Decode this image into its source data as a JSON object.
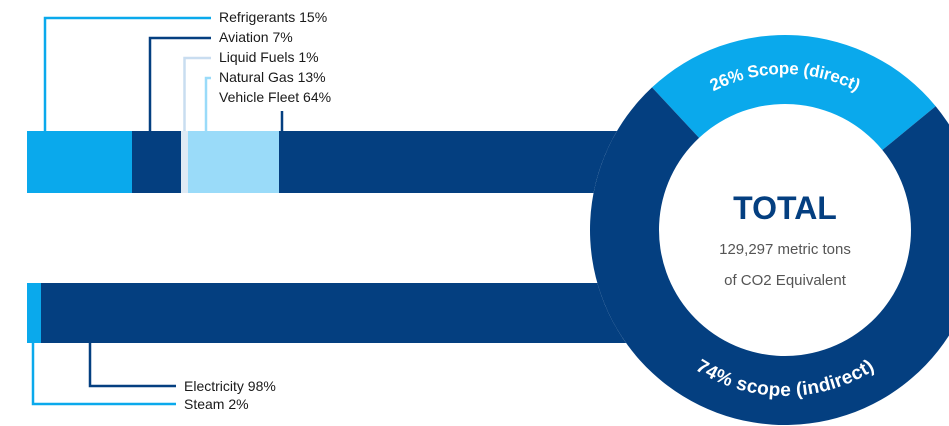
{
  "colors": {
    "navy": "#043F80",
    "bright_blue": "#0AA9EC",
    "light_blue": "#9ADBF9",
    "pale_blue": "#DFEAF4",
    "text_dark": "#1A1A1A",
    "text_grey": "#555555",
    "background": "#FFFFFF"
  },
  "chart_data": [
    {
      "type": "bar",
      "orientation": "horizontal-stacked",
      "group": "direct",
      "segments": [
        {
          "name": "Refrigerants",
          "value": 15,
          "color": "#0AA9EC",
          "label": "Refrigerants 15%"
        },
        {
          "name": "Aviation",
          "value": 7,
          "color": "#043F80",
          "label": "Aviation 7%"
        },
        {
          "name": "Liquid Fuels",
          "value": 1,
          "color": "#DFEAF4",
          "label": "Liquid Fuels 1%"
        },
        {
          "name": "Natural Gas",
          "value": 13,
          "color": "#9ADBF9",
          "label": "Natural Gas 13%"
        },
        {
          "name": "Vehicle Fleet",
          "value": 64,
          "color": "#043F80",
          "label": "Vehicle Fleet 64%"
        }
      ]
    },
    {
      "type": "bar",
      "orientation": "horizontal-stacked",
      "group": "indirect",
      "segments": [
        {
          "name": "Steam",
          "value": 2,
          "color": "#0AA9EC",
          "label": "Steam 2%"
        },
        {
          "name": "Electricity",
          "value": 98,
          "color": "#043F80",
          "label": "Electricity 98%"
        }
      ]
    },
    {
      "type": "pie",
      "style": "donut",
      "slices": [
        {
          "name": "Scope (direct)",
          "value": 26,
          "color": "#0AA9EC",
          "label": "26% Scope (direct)"
        },
        {
          "name": "scope (indirect)",
          "value": 74,
          "color": "#043F80",
          "label": "74% scope (indirect)"
        }
      ],
      "center": {
        "title": "TOTAL",
        "line1": "129,297 metric tons",
        "line2": "of CO2 Equivalent"
      }
    }
  ]
}
